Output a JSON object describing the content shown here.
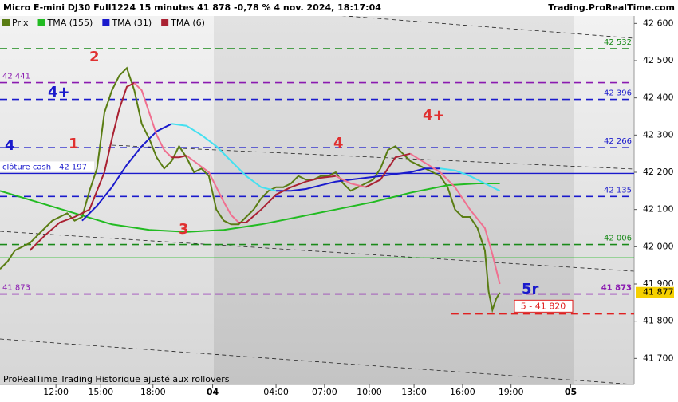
{
  "chart_data": {
    "type": "line",
    "title": "Micro E-mini DJ30 Full1224 15 minutes 41 878 -0,78 % 4 nov. 2024, 18:17:04",
    "source": "Trading.ProRealTime.com",
    "footer": "ProRealTime Trading  Historique ajusté aux rollovers",
    "xlim": [
      0,
      170
    ],
    "ylim": [
      41630,
      42620
    ],
    "xticks": [
      {
        "value": 15,
        "label": "12:00"
      },
      {
        "value": 27,
        "label": "15:00"
      },
      {
        "value": 41,
        "label": "18:00"
      },
      {
        "value": 57,
        "label": "04"
      },
      {
        "value": 74,
        "label": "04:00"
      },
      {
        "value": 87,
        "label": "07:00"
      },
      {
        "value": 99,
        "label": "10:00"
      },
      {
        "value": 111,
        "label": "13:00"
      },
      {
        "value": 124,
        "label": "16:00"
      },
      {
        "value": 137,
        "label": "19:00"
      },
      {
        "value": 153,
        "label": "05"
      }
    ],
    "yticks": [
      {
        "value": 41700,
        "label": "41 700"
      },
      {
        "value": 41800,
        "label": "41 800"
      },
      {
        "value": 41900,
        "label": "41 900"
      },
      {
        "value": 42000,
        "label": "42 000"
      },
      {
        "value": 42100,
        "label": "42 100"
      },
      {
        "value": 42200,
        "label": "42 200"
      },
      {
        "value": 42300,
        "label": "42 300"
      },
      {
        "value": 42400,
        "label": "42 400"
      },
      {
        "value": 42500,
        "label": "42 500"
      },
      {
        "value": 42600,
        "label": "42 600"
      }
    ],
    "series": [
      {
        "name": "Prix",
        "color": "#5a7d14",
        "x": [
          0,
          2,
          4,
          6,
          8,
          10,
          12,
          14,
          16,
          18,
          20,
          22,
          24,
          26,
          28,
          30,
          32,
          34,
          36,
          38,
          40,
          42,
          44,
          46,
          48,
          50,
          52,
          54,
          56,
          58,
          60,
          62,
          64,
          66,
          68,
          70,
          72,
          74,
          76,
          78,
          80,
          82,
          84,
          86,
          88,
          90,
          92,
          94,
          96,
          98,
          100,
          102,
          104,
          106,
          108,
          110,
          112,
          114,
          116,
          118,
          120,
          122,
          124,
          126,
          128,
          130,
          131,
          132,
          133,
          134
        ],
        "values": [
          41940,
          41960,
          41990,
          42000,
          42010,
          42030,
          42050,
          42070,
          42080,
          42090,
          42070,
          42080,
          42150,
          42210,
          42360,
          42420,
          42460,
          42480,
          42420,
          42330,
          42290,
          42240,
          42210,
          42230,
          42270,
          42240,
          42200,
          42210,
          42190,
          42100,
          42070,
          42060,
          42060,
          42080,
          42100,
          42130,
          42150,
          42160,
          42160,
          42170,
          42190,
          42180,
          42180,
          42190,
          42190,
          42200,
          42170,
          42150,
          42160,
          42170,
          42180,
          42210,
          42260,
          42270,
          42250,
          42230,
          42220,
          42210,
          42200,
          42190,
          42160,
          42100,
          42080,
          42080,
          42050,
          41990,
          41880,
          41830,
          41860,
          41877
        ]
      },
      {
        "name": "TMA (155)",
        "color": "#22bb22",
        "x": [
          0,
          10,
          20,
          30,
          40,
          50,
          60,
          70,
          80,
          90,
          100,
          110,
          120,
          128,
          134
        ],
        "values": [
          42150,
          42120,
          42090,
          42060,
          42045,
          42040,
          42045,
          42060,
          42080,
          42100,
          42120,
          42145,
          42165,
          42170,
          42170
        ]
      },
      {
        "name": "TMA (31)",
        "color": "#1a1acc",
        "down_color": "#44e0f0",
        "x": [
          22,
          26,
          30,
          34,
          38,
          42,
          46,
          50,
          54,
          58,
          62,
          66,
          70,
          74,
          78,
          82,
          86,
          90,
          94,
          98,
          102,
          106,
          110,
          114,
          118,
          122,
          126,
          130,
          134
        ],
        "values": [
          42070,
          42110,
          42160,
          42220,
          42270,
          42310,
          42330,
          42325,
          42300,
          42270,
          42230,
          42190,
          42160,
          42150,
          42150,
          42155,
          42165,
          42175,
          42180,
          42185,
          42190,
          42195,
          42200,
          42210,
          42210,
          42205,
          42190,
          42170,
          42150
        ]
      },
      {
        "name": "TMA (6)",
        "color": "#aa2233",
        "down_color": "#f07090",
        "x": [
          8,
          12,
          16,
          20,
          24,
          28,
          30,
          32,
          34,
          36,
          38,
          40,
          42,
          44,
          46,
          48,
          50,
          52,
          54,
          56,
          58,
          60,
          62,
          64,
          66,
          70,
          74,
          78,
          82,
          86,
          90,
          94,
          98,
          102,
          106,
          110,
          114,
          118,
          122,
          126,
          130,
          132,
          134
        ],
        "values": [
          41990,
          42030,
          42065,
          42080,
          42100,
          42200,
          42290,
          42370,
          42430,
          42440,
          42420,
          42360,
          42300,
          42260,
          42240,
          42240,
          42245,
          42230,
          42215,
          42200,
          42160,
          42120,
          42085,
          42065,
          42065,
          42100,
          42140,
          42160,
          42175,
          42185,
          42190,
          42170,
          42160,
          42180,
          42240,
          42250,
          42225,
          42200,
          42160,
          42100,
          42050,
          41980,
          41900
        ]
      }
    ],
    "levels": [
      {
        "value": 42532,
        "label": "42 532",
        "color": "#1a8a1a",
        "dash": true
      },
      {
        "value": 42441,
        "label": "42 441",
        "color": "#8a1ab0",
        "dash": true,
        "left": true
      },
      {
        "value": 42396,
        "label": "42 396",
        "color": "#1a1acc",
        "dash": true
      },
      {
        "value": 42266,
        "label": "42 266",
        "color": "#1a1acc",
        "dash": true
      },
      {
        "value": 42197,
        "label": "clôture cash - 42 197",
        "color": "#1a1acc",
        "dash": false,
        "left": true
      },
      {
        "value": 42135,
        "label": "42 135",
        "color": "#1a1acc",
        "dash": true
      },
      {
        "value": 42006,
        "label": "42 006",
        "color": "#1a8a1a",
        "dash": true
      },
      {
        "value": 41970,
        "color": "#22bb22",
        "dash": false
      },
      {
        "value": 41873,
        "label": "41 873",
        "color": "#8a1ab0",
        "dash": true,
        "left": true,
        "right_label": "41 873"
      }
    ],
    "target": {
      "value": 41820,
      "label": "5 - 41 820",
      "color": "#e02020",
      "from": 121
    },
    "last_price": {
      "value": 41877,
      "label": "41 877"
    },
    "annotations": [
      {
        "text": "2",
        "color": "#e03030"
      },
      {
        "text": "4+",
        "color": "#1a1acc"
      },
      {
        "text": "4",
        "color": "#1a1acc"
      },
      {
        "text": "1",
        "color": "#e03030"
      },
      {
        "text": "3",
        "color": "#e03030"
      },
      {
        "text": "4",
        "color": "#e03030"
      },
      {
        "text": "4+",
        "color": "#e03030"
      },
      {
        "text": "5r",
        "color": "#1a1acc"
      }
    ]
  }
}
